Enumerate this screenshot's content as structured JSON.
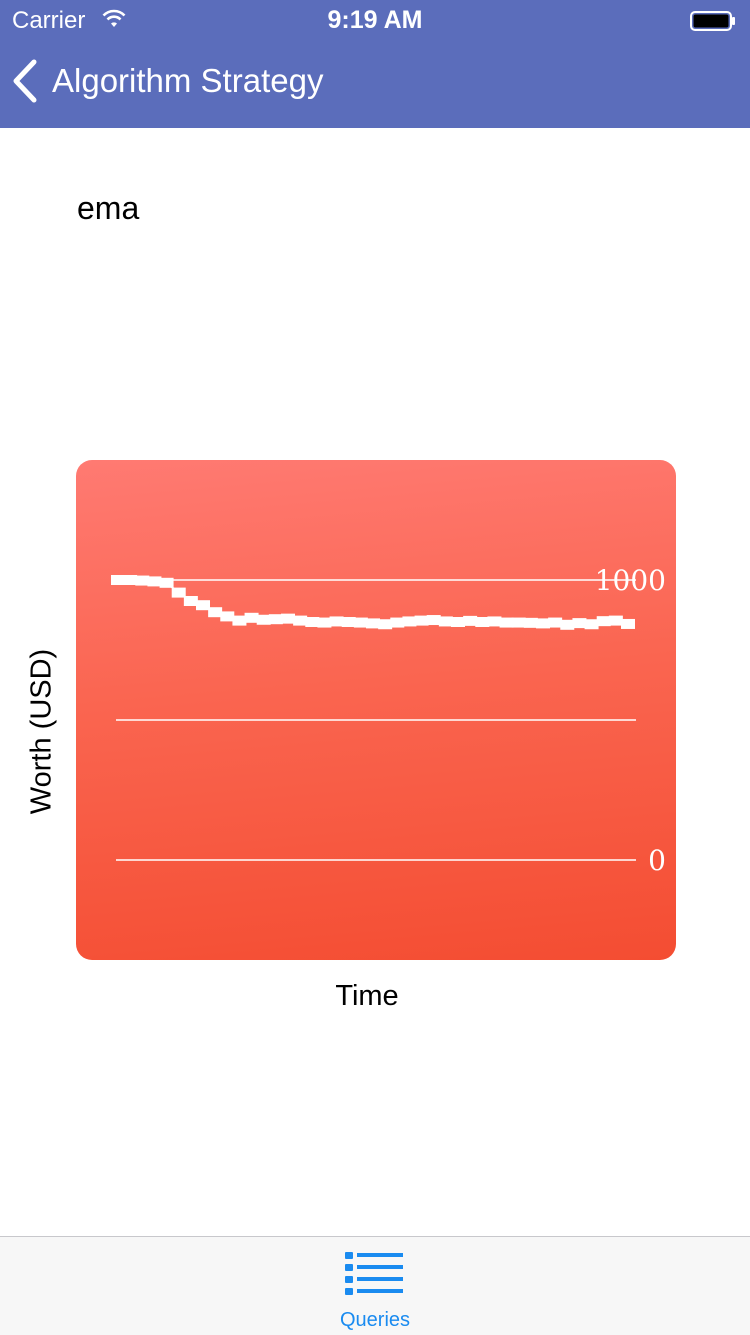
{
  "status_bar": {
    "carrier": "Carrier",
    "time": "9:19 AM"
  },
  "nav": {
    "title": "Algorithm Strategy"
  },
  "strategy": {
    "name": "ema"
  },
  "chart_data": {
    "type": "line",
    "xlabel": "Time",
    "ylabel": "Worth (USD)",
    "y_ticks": [
      "1000",
      "0"
    ],
    "ylim": [
      0,
      1000
    ],
    "grid": true,
    "colors": {
      "background_top": "#ff7a72",
      "background_bottom": "#f44d32",
      "line": "#ffffff"
    },
    "series": [
      {
        "values": [
          1000,
          1000,
          998,
          995,
          990,
          955,
          925,
          910,
          885,
          870,
          855,
          865,
          858,
          860,
          862,
          855,
          850,
          848,
          852,
          850,
          848,
          845,
          842,
          848,
          852,
          855,
          857,
          852,
          850,
          854,
          850,
          852,
          848,
          848,
          847,
          845,
          848,
          840,
          846,
          842,
          853,
          855,
          843
        ]
      }
    ]
  },
  "tabbar": {
    "queries_label": "Queries"
  },
  "icons": {
    "back": "chevron-left-icon",
    "wifi": "wifi-icon",
    "battery": "battery-icon",
    "tab": "list-icon"
  }
}
